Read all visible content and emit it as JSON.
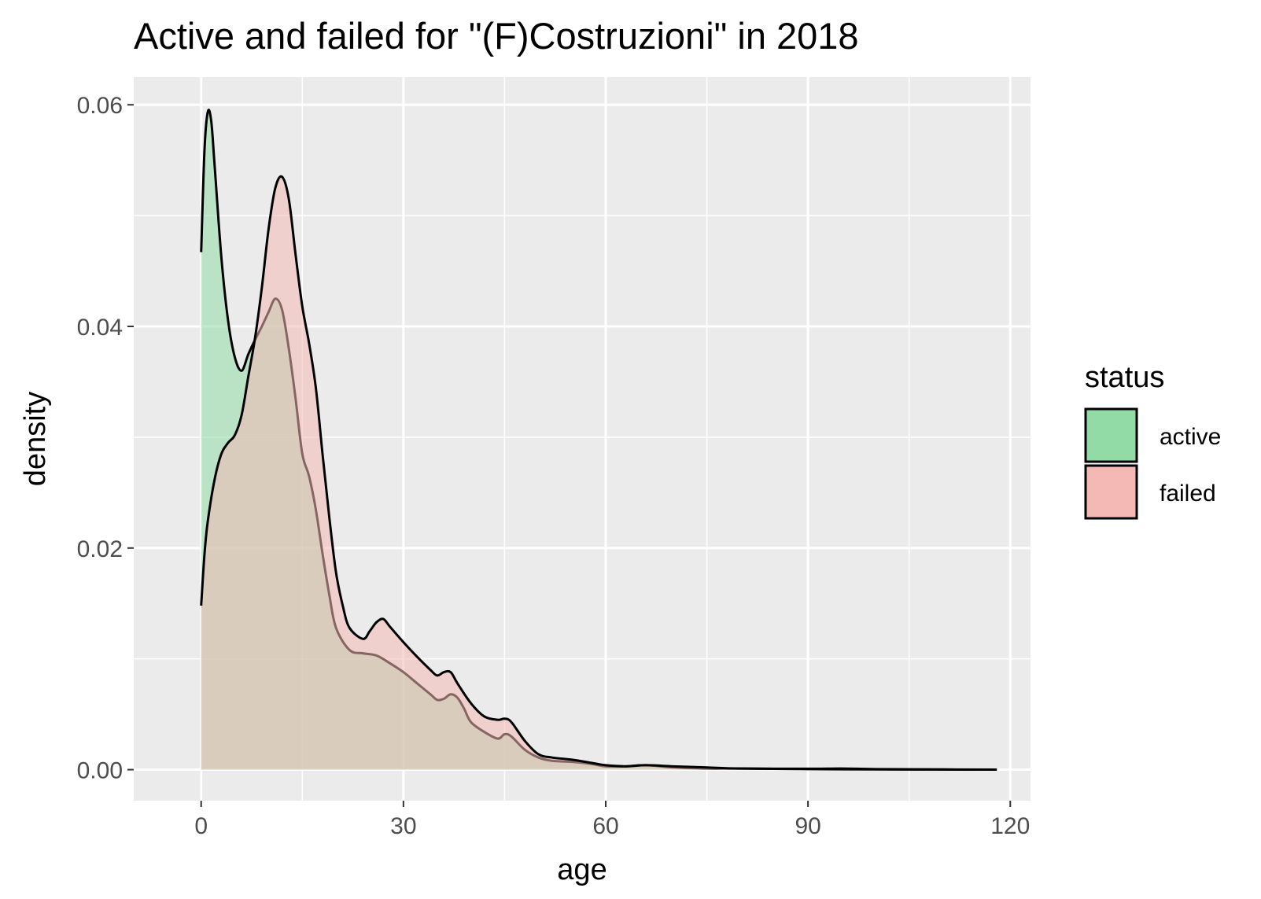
{
  "chart_data": {
    "type": "area",
    "title": "Active and failed for \"(F)Costruzioni\" in 2018",
    "xlabel": "age",
    "ylabel": "density",
    "xlim": [
      -10,
      123
    ],
    "ylim": [
      -0.0028,
      0.0625
    ],
    "x_ticks": [
      0,
      30,
      60,
      90,
      120
    ],
    "x_tick_labels": [
      "0",
      "30",
      "60",
      "90",
      "120"
    ],
    "y_ticks": [
      0,
      0.02,
      0.04,
      0.06
    ],
    "y_tick_labels": [
      "0.00",
      "0.02",
      "0.04",
      "0.06"
    ],
    "grid": true,
    "legend": {
      "title": "status",
      "position": "right",
      "items": [
        "active",
        "failed"
      ]
    },
    "series": [
      {
        "name": "active",
        "fill": "#92dba6",
        "x": [
          0,
          0.5,
          1,
          1.5,
          2,
          3,
          4,
          5,
          6,
          7,
          8,
          9,
          10,
          11,
          12,
          13,
          14,
          15,
          16,
          17,
          18,
          19,
          20,
          22,
          24,
          26,
          28,
          30,
          32,
          34,
          35,
          36,
          37,
          38,
          39,
          40,
          42,
          44,
          45,
          46,
          48,
          50,
          52,
          55,
          58,
          60,
          63,
          66,
          70,
          75,
          80,
          90,
          100,
          110,
          118
        ],
        "values": [
          0.0467,
          0.056,
          0.0594,
          0.0585,
          0.0545,
          0.0462,
          0.0405,
          0.0372,
          0.036,
          0.0375,
          0.0388,
          0.04,
          0.0413,
          0.0425,
          0.0415,
          0.038,
          0.0335,
          0.0285,
          0.0265,
          0.0235,
          0.0195,
          0.0158,
          0.0128,
          0.0108,
          0.0105,
          0.0103,
          0.0096,
          0.0088,
          0.0078,
          0.0068,
          0.0063,
          0.0064,
          0.0068,
          0.0065,
          0.0055,
          0.0043,
          0.0034,
          0.0028,
          0.0032,
          0.003,
          0.0018,
          0.0011,
          0.0008,
          0.0007,
          0.0005,
          0.0003,
          0.0003,
          0.0004,
          0.0002,
          0.0001,
          0.0001,
          5e-05,
          2e-05,
          1e-05,
          0
        ]
      },
      {
        "name": "failed",
        "fill": "#f4b9b4",
        "x": [
          0,
          0.5,
          1,
          2,
          3,
          4,
          5,
          6,
          7,
          8,
          9,
          10,
          11,
          12,
          13,
          14,
          15,
          16,
          17,
          18,
          19,
          20,
          21,
          22,
          24,
          25,
          26,
          27,
          28,
          30,
          32,
          34,
          35,
          36,
          37,
          38,
          40,
          42,
          44,
          45,
          46,
          48,
          50,
          52,
          55,
          58,
          60,
          63,
          66,
          70,
          75,
          80,
          90,
          95,
          100,
          110,
          118
        ],
        "values": [
          0.0148,
          0.0195,
          0.0225,
          0.0262,
          0.0285,
          0.0295,
          0.0302,
          0.032,
          0.0355,
          0.039,
          0.0435,
          0.0488,
          0.0525,
          0.0535,
          0.0515,
          0.0465,
          0.0418,
          0.0385,
          0.0345,
          0.0285,
          0.0228,
          0.0178,
          0.0148,
          0.0128,
          0.0118,
          0.0125,
          0.0133,
          0.0136,
          0.0129,
          0.0115,
          0.0102,
          0.009,
          0.0085,
          0.0088,
          0.0088,
          0.0078,
          0.006,
          0.0048,
          0.0045,
          0.0046,
          0.0043,
          0.0026,
          0.0014,
          0.0011,
          0.0009,
          0.0006,
          0.0004,
          0.0003,
          0.0004,
          0.0003,
          0.0002,
          0.0001,
          8e-05,
          0.0001,
          5e-05,
          2e-05,
          0
        ]
      }
    ]
  }
}
